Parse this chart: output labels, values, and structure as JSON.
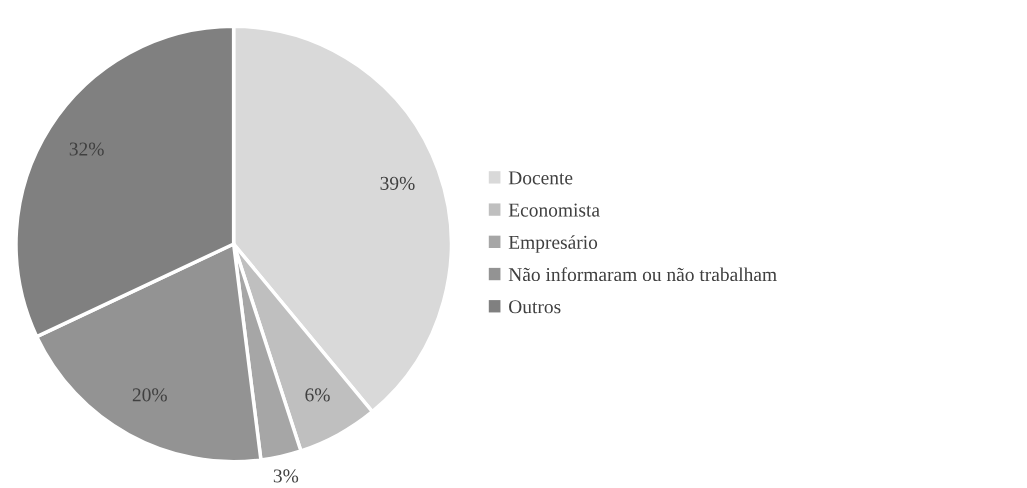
{
  "chart_data": {
    "type": "pie",
    "categories": [
      "Docente",
      "Economista",
      "Empresário",
      "Não informaram ou não trabalham",
      "Outros"
    ],
    "values": [
      39,
      6,
      3,
      20,
      32
    ],
    "colors": [
      "#d9d9d9",
      "#bfbfbf",
      "#a6a6a6",
      "#939393",
      "#808080"
    ],
    "value_labels": [
      "39%",
      "6%",
      "3%",
      "20%",
      "32%"
    ],
    "legend": "right"
  }
}
